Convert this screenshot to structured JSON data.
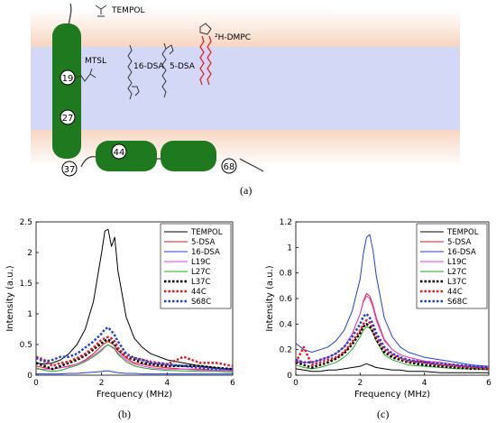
{
  "panels": {
    "a": "(a)",
    "b": "(b)",
    "c": "(c)"
  },
  "diagram": {
    "labels": {
      "tempol": "TEMPOL",
      "mtsl": "MTSL",
      "dsa16": "16-DSA",
      "dsa5": "5-DSA",
      "dmpc": "²H-DMPC"
    },
    "residues": [
      "19",
      "27",
      "44",
      "37",
      "68"
    ],
    "colors": {
      "protein": "#1f7a1f",
      "headgroup": "#f7d6c2",
      "core": "#d4d8f7",
      "dmpc": "#e0262e"
    }
  },
  "chart_data": [
    {
      "type": "line",
      "panel": "b",
      "xlabel": "Frequency (MHz)",
      "ylabel": "Intensity (a.u.)",
      "xlim": [
        0,
        6
      ],
      "ylim": [
        0,
        2.5
      ],
      "xticks": [
        0,
        2,
        4,
        6
      ],
      "yticks": [
        0,
        0.5,
        1,
        1.5,
        2,
        2.5
      ],
      "legend_position": "top-right",
      "x": [
        0,
        0.25,
        0.5,
        0.75,
        1,
        1.25,
        1.5,
        1.75,
        2,
        2.1,
        2.2,
        2.3,
        2.4,
        2.5,
        2.75,
        3,
        3.25,
        3.5,
        4,
        4.5,
        5,
        5.5,
        6
      ],
      "series": [
        {
          "name": "TEMPOL",
          "color": "#000000",
          "style": "solid",
          "width": 1,
          "values": [
            0.2,
            0.18,
            0.2,
            0.25,
            0.35,
            0.5,
            0.75,
            1.2,
            2.0,
            2.35,
            2.38,
            2.1,
            2.25,
            1.7,
            0.95,
            0.6,
            0.45,
            0.35,
            0.25,
            0.2,
            0.15,
            0.12,
            0.1
          ]
        },
        {
          "name": "5-DSA",
          "color": "#e31a1c",
          "style": "solid",
          "width": 1,
          "values": [
            0.15,
            0.12,
            0.1,
            0.12,
            0.15,
            0.18,
            0.25,
            0.35,
            0.48,
            0.52,
            0.55,
            0.52,
            0.48,
            0.4,
            0.28,
            0.2,
            0.18,
            0.15,
            0.12,
            0.1,
            0.1,
            0.08,
            0.08
          ]
        },
        {
          "name": "16-DSA",
          "color": "#1f3fdc",
          "style": "solid",
          "width": 1,
          "values": [
            0.02,
            0.02,
            0.02,
            0.02,
            0.03,
            0.03,
            0.04,
            0.05,
            0.06,
            0.07,
            0.07,
            0.06,
            0.05,
            0.04,
            0.03,
            0.03,
            0.02,
            0.02,
            0.02,
            0.02,
            0.02,
            0.02,
            0.02
          ]
        },
        {
          "name": "L19C",
          "color": "#e040e0",
          "style": "solid",
          "width": 1,
          "values": [
            0.1,
            0.1,
            0.1,
            0.12,
            0.14,
            0.18,
            0.24,
            0.32,
            0.42,
            0.47,
            0.49,
            0.47,
            0.44,
            0.36,
            0.25,
            0.18,
            0.15,
            0.12,
            0.1,
            0.1,
            0.08,
            0.08,
            0.07
          ]
        },
        {
          "name": "L27C",
          "color": "#22aa22",
          "style": "solid",
          "width": 1,
          "values": [
            0.12,
            0.08,
            0.06,
            0.08,
            0.12,
            0.16,
            0.22,
            0.3,
            0.4,
            0.46,
            0.5,
            0.46,
            0.42,
            0.34,
            0.22,
            0.15,
            0.12,
            0.1,
            0.08,
            0.07,
            0.06,
            0.06,
            0.05
          ]
        },
        {
          "name": "L37C",
          "color": "#000000",
          "style": "dotted",
          "width": 2.5,
          "values": [
            0.2,
            0.15,
            0.1,
            0.15,
            0.2,
            0.25,
            0.32,
            0.42,
            0.52,
            0.56,
            0.58,
            0.55,
            0.5,
            0.42,
            0.3,
            0.25,
            0.2,
            0.18,
            0.15,
            0.15,
            0.15,
            0.12,
            0.1
          ]
        },
        {
          "name": "44C",
          "color": "#e31a1c",
          "style": "dotted",
          "width": 2.5,
          "values": [
            0.3,
            0.25,
            0.15,
            0.2,
            0.22,
            0.28,
            0.35,
            0.45,
            0.58,
            0.6,
            0.62,
            0.6,
            0.55,
            0.45,
            0.3,
            0.28,
            0.25,
            0.22,
            0.18,
            0.3,
            0.2,
            0.2,
            0.15
          ]
        },
        {
          "name": "S68C",
          "color": "#1f3fdc",
          "style": "dotted",
          "width": 2.5,
          "values": [
            0.28,
            0.22,
            0.25,
            0.3,
            0.3,
            0.35,
            0.45,
            0.55,
            0.68,
            0.75,
            0.78,
            0.72,
            0.65,
            0.55,
            0.35,
            0.28,
            0.25,
            0.2,
            0.18,
            0.15,
            0.12,
            0.1,
            0.1
          ]
        }
      ]
    },
    {
      "type": "line",
      "panel": "c",
      "xlabel": "Frequency (MHz)",
      "ylabel": "Intensity (a.u.)",
      "xlim": [
        0,
        6
      ],
      "ylim": [
        0,
        1.2
      ],
      "xticks": [
        0,
        2,
        4,
        6
      ],
      "yticks": [
        0,
        0.2,
        0.4,
        0.6,
        0.8,
        1,
        1.2
      ],
      "legend_position": "top-right",
      "x": [
        0,
        0.25,
        0.5,
        0.75,
        1,
        1.25,
        1.5,
        1.75,
        2,
        2.1,
        2.2,
        2.3,
        2.4,
        2.5,
        2.75,
        3,
        3.25,
        3.5,
        4,
        4.5,
        5,
        5.5,
        6
      ],
      "series": [
        {
          "name": "TEMPOL",
          "color": "#000000",
          "style": "solid",
          "width": 1,
          "values": [
            0.05,
            0.04,
            0.03,
            0.03,
            0.04,
            0.04,
            0.05,
            0.06,
            0.07,
            0.08,
            0.09,
            0.08,
            0.07,
            0.06,
            0.05,
            0.04,
            0.04,
            0.03,
            0.03,
            0.02,
            0.02,
            0.02,
            0.02
          ]
        },
        {
          "name": "5-DSA",
          "color": "#e31a1c",
          "style": "solid",
          "width": 1,
          "values": [
            0.1,
            0.1,
            0.1,
            0.12,
            0.14,
            0.17,
            0.22,
            0.32,
            0.48,
            0.58,
            0.64,
            0.62,
            0.55,
            0.45,
            0.28,
            0.2,
            0.16,
            0.14,
            0.11,
            0.1,
            0.08,
            0.07,
            0.06
          ]
        },
        {
          "name": "16-DSA",
          "color": "#1f3fdc",
          "style": "solid",
          "width": 1,
          "values": [
            0.25,
            0.2,
            0.18,
            0.2,
            0.22,
            0.27,
            0.35,
            0.5,
            0.75,
            0.95,
            1.08,
            1.1,
            0.98,
            0.78,
            0.45,
            0.3,
            0.22,
            0.18,
            0.14,
            0.12,
            0.1,
            0.08,
            0.07
          ]
        },
        {
          "name": "L19C",
          "color": "#e040e0",
          "style": "solid",
          "width": 1,
          "values": [
            0.12,
            0.1,
            0.1,
            0.12,
            0.14,
            0.17,
            0.22,
            0.32,
            0.48,
            0.57,
            0.62,
            0.6,
            0.53,
            0.43,
            0.27,
            0.2,
            0.16,
            0.14,
            0.11,
            0.1,
            0.08,
            0.07,
            0.06
          ]
        },
        {
          "name": "L27C",
          "color": "#22aa22",
          "style": "solid",
          "width": 1,
          "values": [
            0.08,
            0.06,
            0.05,
            0.06,
            0.08,
            0.1,
            0.14,
            0.2,
            0.3,
            0.35,
            0.38,
            0.37,
            0.33,
            0.27,
            0.16,
            0.12,
            0.1,
            0.08,
            0.07,
            0.06,
            0.05,
            0.05,
            0.04
          ]
        },
        {
          "name": "L37C",
          "color": "#000000",
          "style": "dotted",
          "width": 2.5,
          "values": [
            0.1,
            0.08,
            0.06,
            0.08,
            0.1,
            0.13,
            0.17,
            0.24,
            0.33,
            0.38,
            0.4,
            0.38,
            0.34,
            0.28,
            0.18,
            0.14,
            0.12,
            0.1,
            0.08,
            0.07,
            0.06,
            0.05,
            0.05
          ]
        },
        {
          "name": "44C",
          "color": "#e31a1c",
          "style": "dotted",
          "width": 2.5,
          "values": [
            0.1,
            0.22,
            0.08,
            0.1,
            0.12,
            0.14,
            0.18,
            0.26,
            0.35,
            0.4,
            0.43,
            0.41,
            0.37,
            0.3,
            0.2,
            0.16,
            0.13,
            0.11,
            0.1,
            0.08,
            0.07,
            0.06,
            0.05
          ]
        },
        {
          "name": "S68C",
          "color": "#1f3fdc",
          "style": "dotted",
          "width": 2.5,
          "values": [
            0.12,
            0.1,
            0.1,
            0.12,
            0.14,
            0.17,
            0.22,
            0.3,
            0.4,
            0.46,
            0.48,
            0.45,
            0.4,
            0.33,
            0.22,
            0.17,
            0.14,
            0.12,
            0.1,
            0.09,
            0.08,
            0.07,
            0.06
          ]
        }
      ]
    }
  ]
}
